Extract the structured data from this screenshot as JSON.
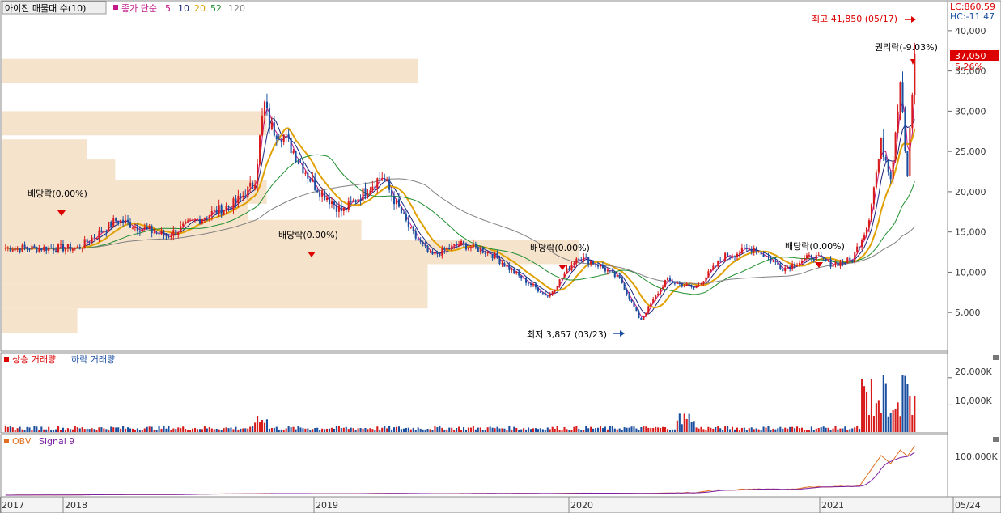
{
  "header": {
    "stock_name": "아이진 매물대 수(10)",
    "ma_label": "종가 단순",
    "ma_periods": [
      {
        "label": "5",
        "color": "#c2188a"
      },
      {
        "label": "10",
        "color": "#1a237e"
      },
      {
        "label": "20",
        "color": "#e0a000"
      },
      {
        "label": "52",
        "color": "#1f8f2f"
      },
      {
        "label": "120",
        "color": "#808080"
      }
    ]
  },
  "right_info": {
    "lc": "LC:860.59",
    "hc": "HC:-11.47",
    "price_tag": "37,050",
    "pct": "5.26%"
  },
  "chart_data": {
    "type": "candlestick",
    "price_ticks": [
      "40,000",
      "35,000",
      "30,000",
      "25,000",
      "20,000",
      "15,000",
      "10,000",
      "5,000"
    ],
    "price_tick_values": [
      40000,
      35000,
      30000,
      25000,
      20000,
      15000,
      10000,
      5000
    ],
    "ylim": [
      1000,
      43000
    ],
    "x_labels": [
      "2017",
      "2018",
      "2019",
      "2020",
      "2021",
      "05/24"
    ],
    "volume_panel": {
      "legend_up": "상승 거래량",
      "legend_down": "하락 거래량",
      "ticks": [
        "20,000K",
        "10,000K"
      ],
      "tick_values": [
        20000,
        10000
      ],
      "ylim": [
        0,
        25000
      ]
    },
    "obv_panel": {
      "legend_obv": "OBV",
      "legend_signal": "Signal 9",
      "ticks": [
        "100,000K"
      ],
      "tick_values": [
        100000
      ]
    },
    "annotations": {
      "high": "최고 41,850 (05/17)",
      "low": "최저 3,857 (03/23)",
      "rights": "권리락(-9.03%)",
      "dividend": "배당락(0.00%)"
    },
    "volume_profile_prices": [
      35000,
      28500,
      25000,
      22500,
      20000,
      17500,
      15000,
      12500,
      10000,
      7000,
      4000
    ],
    "anchors": [
      [
        2017.35,
        13000
      ],
      [
        2017.55,
        16500
      ],
      [
        2017.8,
        14500
      ],
      [
        2018.0,
        17000
      ],
      [
        2018.15,
        18500
      ],
      [
        2018.25,
        21000
      ],
      [
        2018.3,
        31000
      ],
      [
        2018.33,
        28000
      ],
      [
        2018.4,
        27000
      ],
      [
        2018.55,
        21000
      ],
      [
        2018.7,
        17500
      ],
      [
        2018.9,
        22000
      ],
      [
        2019.05,
        15000
      ],
      [
        2019.15,
        12000
      ],
      [
        2019.3,
        13500
      ],
      [
        2019.45,
        12500
      ],
      [
        2019.6,
        9500
      ],
      [
        2019.75,
        7000
      ],
      [
        2019.9,
        12000
      ],
      [
        2020.0,
        11000
      ],
      [
        2020.12,
        9000
      ],
      [
        2020.22,
        4000
      ],
      [
        2020.35,
        9000
      ],
      [
        2020.5,
        8000
      ],
      [
        2020.65,
        12000
      ],
      [
        2020.8,
        13000
      ],
      [
        2020.95,
        10500
      ],
      [
        2021.1,
        12000
      ],
      [
        2021.2,
        11000
      ],
      [
        2021.3,
        11500
      ],
      [
        2021.38,
        16000
      ],
      [
        2021.45,
        26000
      ],
      [
        2021.5,
        22000
      ],
      [
        2021.55,
        35000
      ],
      [
        2021.58,
        21000
      ],
      [
        2021.62,
        37050
      ]
    ]
  }
}
